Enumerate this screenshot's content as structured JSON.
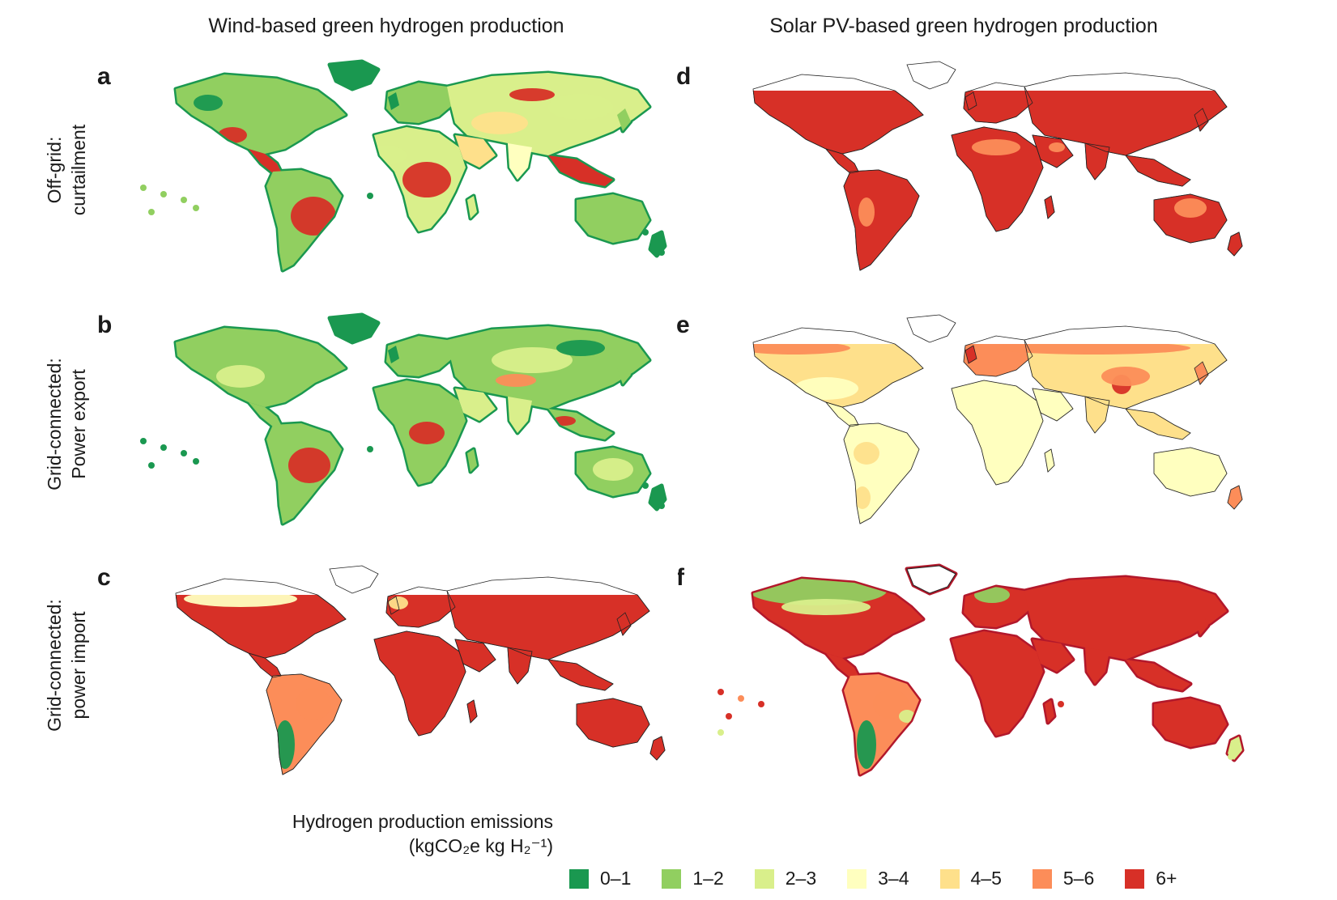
{
  "columns": {
    "left_title": "Wind-based green hydrogen production",
    "right_title": "Solar PV-based green hydrogen production"
  },
  "rows": [
    {
      "line1": "Off-grid:",
      "line2": "curtailment"
    },
    {
      "line1": "Grid-connected:",
      "line2": "Power export"
    },
    {
      "line1": "Grid-connected:",
      "line2": "power import"
    }
  ],
  "panels": [
    {
      "letter": "a",
      "scheme": "wind_offgrid"
    },
    {
      "letter": "b",
      "scheme": "wind_export"
    },
    {
      "letter": "c",
      "scheme": "wind_import"
    },
    {
      "letter": "d",
      "scheme": "solar_offgrid"
    },
    {
      "letter": "e",
      "scheme": "solar_export"
    },
    {
      "letter": "f",
      "scheme": "solar_import"
    }
  ],
  "legend": {
    "title_line1": "Hydrogen production emissions",
    "title_line2": "(kgCO₂e kg H₂⁻¹)",
    "items": [
      {
        "label": "0–1",
        "color": "#1a9850"
      },
      {
        "label": "1–2",
        "color": "#91cf60"
      },
      {
        "label": "2–3",
        "color": "#d9ef8b"
      },
      {
        "label": "3–4",
        "color": "#ffffbf"
      },
      {
        "label": "4–5",
        "color": "#fee08b"
      },
      {
        "label": "5–6",
        "color": "#fc8d59"
      },
      {
        "label": "6+",
        "color": "#d73027"
      }
    ]
  }
}
